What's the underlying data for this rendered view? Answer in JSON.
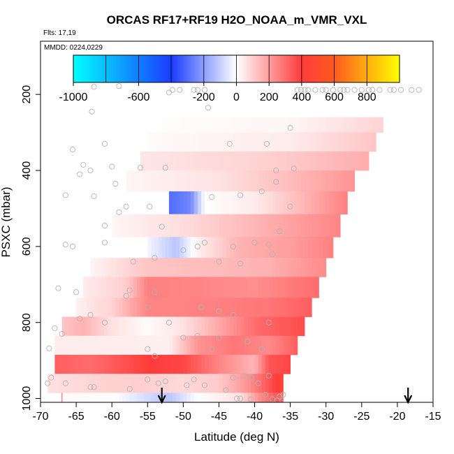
{
  "chart_data": {
    "type": "heatmap",
    "title": "ORCAS RF17+RF19 H2O_NOAA_m_VMR_VXL",
    "subtitle": "Flts: 17,19",
    "annotation": "MMDD: 0224,0229",
    "xlabel": "Latitude (deg N)",
    "ylabel": "PSXC (mbar)",
    "xlim": [
      -70,
      -15
    ],
    "ylim": [
      1010,
      60
    ],
    "y_reversed": true,
    "xticks": [
      -70,
      -65,
      -60,
      -55,
      -50,
      -45,
      -40,
      -35,
      -30,
      -25,
      -20,
      -15
    ],
    "yticks": [
      200,
      400,
      600,
      800,
      1000
    ],
    "colorbar": {
      "ticks": [
        -1000,
        -600,
        -200,
        0,
        200,
        400,
        600,
        800
      ],
      "range": [
        -1000,
        1000
      ],
      "colors": {
        "min": "#00ffff",
        "neg_mid": "#1a3cff",
        "zero": "#ffffff",
        "pos_low": "#ff3c3c",
        "pos_mid": "#ff5a1e",
        "max": "#ffff00"
      }
    },
    "bands": [
      {
        "p_min": 260,
        "p_max": 300,
        "x_start": -53,
        "x_end": -22,
        "values": [
          {
            "x": -53,
            "v": 5
          },
          {
            "x": -35,
            "v": 20
          },
          {
            "x": -22,
            "v": 90
          }
        ]
      },
      {
        "p_min": 300,
        "p_max": 350,
        "x_start": -55,
        "x_end": -23,
        "values": [
          {
            "x": -55,
            "v": 10
          },
          {
            "x": -35,
            "v": 40
          },
          {
            "x": -23,
            "v": 120
          }
        ]
      },
      {
        "p_min": 350,
        "p_max": 400,
        "x_start": -56,
        "x_end": -24,
        "values": [
          {
            "x": -56,
            "v": 50
          },
          {
            "x": -40,
            "v": 90
          },
          {
            "x": -35,
            "v": 110
          },
          {
            "x": -24,
            "v": 170
          }
        ]
      },
      {
        "p_min": 400,
        "p_max": 455,
        "x_start": -58,
        "x_end": -26,
        "values": [
          {
            "x": -58,
            "v": 20
          },
          {
            "x": -45,
            "v": 60
          },
          {
            "x": -36,
            "v": 130
          },
          {
            "x": -26,
            "v": 220
          }
        ]
      },
      {
        "p_min": 455,
        "p_max": 515,
        "x_start": -52,
        "x_end": -27,
        "values": [
          {
            "x": -52,
            "v": -300
          },
          {
            "x": -49,
            "v": -250
          },
          {
            "x": -47,
            "v": 0
          },
          {
            "x": -40,
            "v": 40
          },
          {
            "x": -35,
            "v": 120
          },
          {
            "x": -27,
            "v": 260
          }
        ]
      },
      {
        "p_min": 515,
        "p_max": 575,
        "x_start": -60,
        "x_end": -28,
        "values": [
          {
            "x": -60,
            "v": 20
          },
          {
            "x": -50,
            "v": 70
          },
          {
            "x": -40,
            "v": 150
          },
          {
            "x": -28,
            "v": 250
          }
        ]
      },
      {
        "p_min": 575,
        "p_max": 630,
        "x_start": -55,
        "x_end": -29,
        "values": [
          {
            "x": -55,
            "v": -20
          },
          {
            "x": -51,
            "v": -120
          },
          {
            "x": -48,
            "v": 30
          },
          {
            "x": -42,
            "v": 160
          },
          {
            "x": -35,
            "v": 200
          },
          {
            "x": -29,
            "v": 260
          }
        ]
      },
      {
        "p_min": 630,
        "p_max": 680,
        "x_start": -63,
        "x_end": -30,
        "values": [
          {
            "x": -63,
            "v": 20
          },
          {
            "x": -55,
            "v": 120
          },
          {
            "x": -45,
            "v": 140
          },
          {
            "x": -38,
            "v": 160
          },
          {
            "x": -30,
            "v": 240
          }
        ]
      },
      {
        "p_min": 680,
        "p_max": 735,
        "x_start": -64,
        "x_end": -31,
        "values": [
          {
            "x": -64,
            "v": 40
          },
          {
            "x": -58,
            "v": 100
          },
          {
            "x": -55,
            "v": 260
          },
          {
            "x": -48,
            "v": 250
          },
          {
            "x": -40,
            "v": 230
          },
          {
            "x": -31,
            "v": 300
          }
        ]
      },
      {
        "p_min": 735,
        "p_max": 785,
        "x_start": -65,
        "x_end": -32,
        "values": [
          {
            "x": -65,
            "v": 30
          },
          {
            "x": -60,
            "v": 90
          },
          {
            "x": -55,
            "v": 250
          },
          {
            "x": -45,
            "v": 260
          },
          {
            "x": -38,
            "v": 280
          },
          {
            "x": -32,
            "v": 330
          }
        ]
      },
      {
        "p_min": 785,
        "p_max": 835,
        "x_start": -67,
        "x_end": -33,
        "values": [
          {
            "x": -67,
            "v": 120
          },
          {
            "x": -64,
            "v": 160
          },
          {
            "x": -60,
            "v": 60
          },
          {
            "x": -55,
            "v": 10
          },
          {
            "x": -50,
            "v": 60
          },
          {
            "x": -45,
            "v": 180
          },
          {
            "x": -40,
            "v": 300
          },
          {
            "x": -33,
            "v": 370
          }
        ]
      },
      {
        "p_min": 835,
        "p_max": 885,
        "x_start": -68,
        "x_end": -34,
        "values": [
          {
            "x": -68,
            "v": 40
          },
          {
            "x": -60,
            "v": 40
          },
          {
            "x": -52,
            "v": 30
          },
          {
            "x": -48,
            "v": 220
          },
          {
            "x": -43,
            "v": 280
          },
          {
            "x": -38,
            "v": 240
          },
          {
            "x": -34,
            "v": 330
          }
        ]
      },
      {
        "p_min": 885,
        "p_max": 935,
        "x_start": -68,
        "x_end": -35,
        "values": [
          {
            "x": -68,
            "v": 330
          },
          {
            "x": -63,
            "v": 300
          },
          {
            "x": -58,
            "v": 360
          },
          {
            "x": -55,
            "v": 400
          },
          {
            "x": -50,
            "v": 380
          },
          {
            "x": -45,
            "v": 250
          },
          {
            "x": -40,
            "v": 150
          },
          {
            "x": -38,
            "v": 350
          },
          {
            "x": -35,
            "v": 380
          }
        ]
      },
      {
        "p_min": 935,
        "p_max": 985,
        "x_start": -69,
        "x_end": -36,
        "values": [
          {
            "x": -69,
            "v": 60
          },
          {
            "x": -62,
            "v": 90
          },
          {
            "x": -56,
            "v": 100
          },
          {
            "x": -50,
            "v": 80
          },
          {
            "x": -45,
            "v": 110
          },
          {
            "x": -41,
            "v": 220
          },
          {
            "x": -38,
            "v": 350
          },
          {
            "x": -36.5,
            "v": 420
          },
          {
            "x": -36,
            "v": 450
          }
        ]
      },
      {
        "p_min": 985,
        "p_max": 1010,
        "x_start": -67,
        "x_end": -36,
        "values": [
          {
            "x": -67,
            "v": 10
          },
          {
            "x": -60,
            "v": 5
          },
          {
            "x": -52,
            "v": -120
          },
          {
            "x": -48,
            "v": 0
          },
          {
            "x": -42,
            "v": 60
          },
          {
            "x": -39,
            "v": 250
          },
          {
            "x": -37,
            "v": 340
          },
          {
            "x": -36,
            "v": 300
          }
        ]
      }
    ],
    "scatter_points": [
      [
        -62.5,
        180
      ],
      [
        -59,
        178
      ],
      [
        -52,
        195
      ],
      [
        -51.5,
        188
      ],
      [
        -50.5,
        188
      ],
      [
        -48.5,
        188
      ],
      [
        -48,
        188
      ],
      [
        -47,
        188
      ],
      [
        -34,
        188
      ],
      [
        -33.5,
        188
      ],
      [
        -33,
        188
      ],
      [
        -32.5,
        188
      ],
      [
        -31.5,
        188
      ],
      [
        -30.5,
        188
      ],
      [
        -30,
        188
      ],
      [
        -29,
        188
      ],
      [
        -28,
        188
      ],
      [
        -27.5,
        188
      ],
      [
        -27,
        188
      ],
      [
        -26,
        188
      ],
      [
        -25,
        188
      ],
      [
        -24,
        188
      ],
      [
        -23.5,
        188
      ],
      [
        -22.5,
        188
      ],
      [
        -21,
        188
      ],
      [
        -20.5,
        188
      ],
      [
        -19.5,
        188
      ],
      [
        -18,
        188
      ],
      [
        -17,
        188
      ],
      [
        -62.8,
        245
      ],
      [
        -46.5,
        235
      ],
      [
        -35,
        288
      ],
      [
        -61,
        330
      ],
      [
        -38.3,
        330
      ],
      [
        -65.5,
        345
      ],
      [
        -43.5,
        330
      ],
      [
        -64,
        385
      ],
      [
        -60,
        390
      ],
      [
        -56,
        393
      ],
      [
        -52.5,
        393
      ],
      [
        -34.5,
        395
      ],
      [
        -63,
        400
      ],
      [
        -37,
        400
      ],
      [
        -64.5,
        410
      ],
      [
        -37,
        430
      ],
      [
        -59.5,
        435
      ],
      [
        -66.5,
        465
      ],
      [
        -62.5,
        468
      ],
      [
        -46,
        470
      ],
      [
        -42,
        465
      ],
      [
        -39,
        455
      ],
      [
        -58,
        495
      ],
      [
        -54.7,
        495
      ],
      [
        -59,
        510
      ],
      [
        -35,
        495
      ],
      [
        -61,
        545
      ],
      [
        -53,
        548
      ],
      [
        -36.5,
        560
      ],
      [
        -66.5,
        595
      ],
      [
        -65.5,
        600
      ],
      [
        -61,
        590
      ],
      [
        -47,
        590
      ],
      [
        -40,
        590
      ],
      [
        -38,
        595
      ],
      [
        -57,
        640
      ],
      [
        -45,
        640
      ],
      [
        -42,
        645
      ],
      [
        -37.5,
        620
      ],
      [
        -54,
        630
      ],
      [
        -50,
        610
      ],
      [
        -48,
        600
      ],
      [
        -43,
        600
      ],
      [
        -67.5,
        710
      ],
      [
        -65,
        720
      ],
      [
        -57.5,
        715
      ],
      [
        -54,
        720
      ],
      [
        -47.5,
        760
      ],
      [
        -58,
        730
      ],
      [
        -55,
        760
      ],
      [
        -63,
        780
      ],
      [
        -64.5,
        790
      ],
      [
        -68,
        815
      ],
      [
        -67,
        830
      ],
      [
        -45,
        770
      ],
      [
        -52,
        800
      ],
      [
        -43,
        780
      ],
      [
        -50,
        840
      ],
      [
        -45,
        840
      ],
      [
        -39,
        870
      ],
      [
        -61,
        800
      ],
      [
        -41,
        850
      ],
      [
        -38,
        800
      ],
      [
        -48,
        835
      ],
      [
        -68.8,
        868
      ],
      [
        -46,
        870
      ],
      [
        -68.5,
        945
      ],
      [
        -69,
        960
      ],
      [
        -66.5,
        960
      ],
      [
        -63,
        970
      ],
      [
        -62.5,
        970
      ],
      [
        -55,
        950
      ],
      [
        -52.5,
        955
      ],
      [
        -48.5,
        950
      ],
      [
        -43,
        945
      ],
      [
        -40.5,
        945
      ],
      [
        -38,
        940
      ],
      [
        -57.5,
        975
      ],
      [
        -53.5,
        960
      ],
      [
        -49.5,
        965
      ],
      [
        -42.5,
        1000
      ],
      [
        -42,
        1000
      ],
      [
        -40.5,
        1002
      ],
      [
        -37.5,
        1002
      ],
      [
        -36.5,
        995
      ],
      [
        -36,
        990
      ],
      [
        -47,
        965
      ],
      [
        -44,
        978
      ],
      [
        -54,
        888
      ],
      [
        -55,
        870
      ],
      [
        -41.5,
        940
      ],
      [
        -39.5,
        960
      ],
      [
        -38.5,
        990
      ],
      [
        -36.8,
        1005
      ]
    ],
    "arrows": [
      -53,
      -18.5
    ],
    "reference_line": {
      "x": -67,
      "p_min": 985,
      "p_max": 1010,
      "color": "#ff8080"
    }
  }
}
